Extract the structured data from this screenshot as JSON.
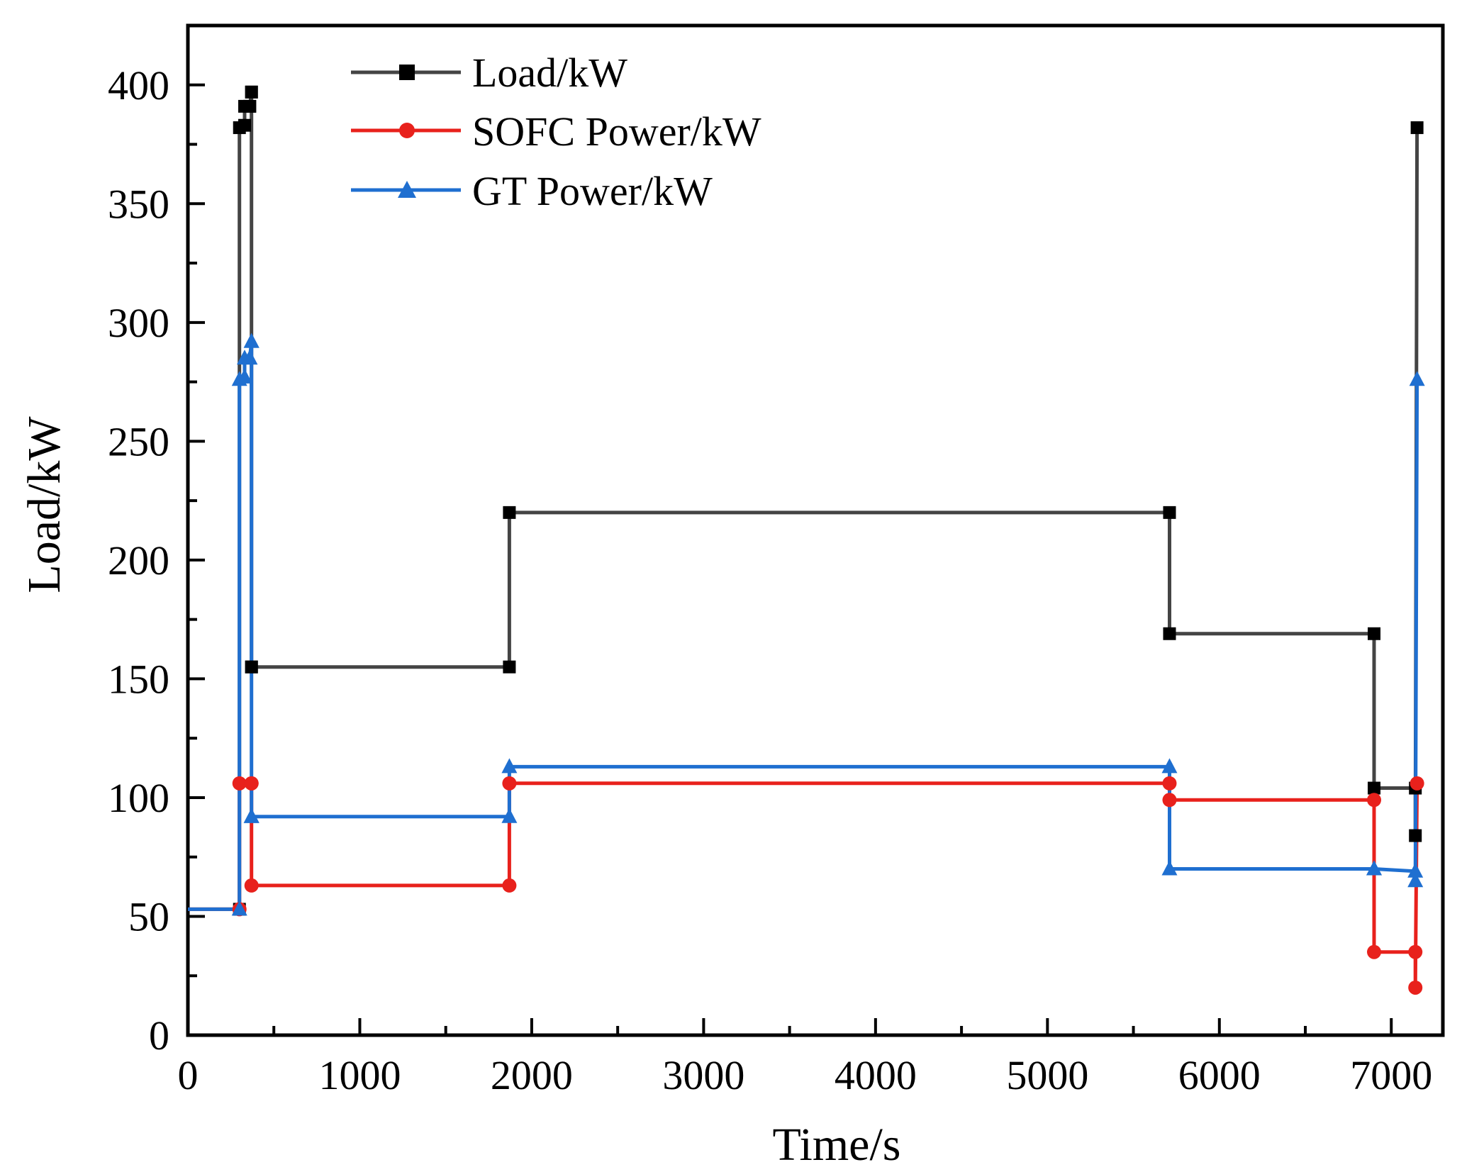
{
  "chart_data": {
    "type": "line",
    "step": true,
    "title": "",
    "xlabel": "Time/s",
    "ylabel": "Load/kW",
    "xlim": [
      0,
      7300
    ],
    "ylim": [
      0,
      425
    ],
    "xticks": [
      0,
      1000,
      2000,
      3000,
      4000,
      5000,
      6000,
      7000
    ],
    "yticks": [
      0,
      50,
      100,
      150,
      200,
      250,
      300,
      350,
      400
    ],
    "xtick_labels": [
      "0",
      "1000",
      "2000",
      "3000",
      "4000",
      "5000",
      "6000",
      "7000"
    ],
    "ytick_labels": [
      "0",
      "50",
      "100",
      "150",
      "200",
      "250",
      "300",
      "350",
      "400"
    ],
    "grid": false,
    "legend_position": "top-left",
    "series": [
      {
        "name": "Load/kW",
        "color": "#444444",
        "marker": "square",
        "x": [
          0,
          300,
          300,
          330,
          330,
          360,
          360,
          370,
          370,
          370,
          370,
          1870,
          1870,
          5710,
          5710,
          6900,
          6900,
          7140,
          7140,
          7150
        ],
        "y": [
          53,
          53,
          382,
          383,
          391,
          391,
          391,
          397,
          397,
          155,
          155,
          155,
          220,
          220,
          169,
          169,
          104,
          104,
          84,
          382
        ]
      },
      {
        "name": "SOFC Power/kW",
        "color": "#e8211c",
        "marker": "circle",
        "x": [
          0,
          300,
          300,
          370,
          370,
          370,
          1870,
          1870,
          5710,
          5710,
          6900,
          6900,
          7140,
          7140,
          7150
        ],
        "y": [
          53,
          53,
          106,
          106,
          106,
          63,
          63,
          106,
          106,
          99,
          99,
          35,
          35,
          20,
          106
        ]
      },
      {
        "name": "GT Power/kW",
        "color": "#1f6fd0",
        "marker": "triangle",
        "x": [
          0,
          300,
          300,
          330,
          330,
          360,
          360,
          370,
          370,
          370,
          370,
          1870,
          1870,
          5710,
          5710,
          6900,
          6900,
          7140,
          7140,
          7150
        ],
        "y": [
          53,
          53,
          276,
          277,
          285,
          285,
          285,
          292,
          292,
          92,
          92,
          92,
          113,
          113,
          70,
          70,
          70,
          69,
          65,
          276
        ]
      }
    ]
  }
}
